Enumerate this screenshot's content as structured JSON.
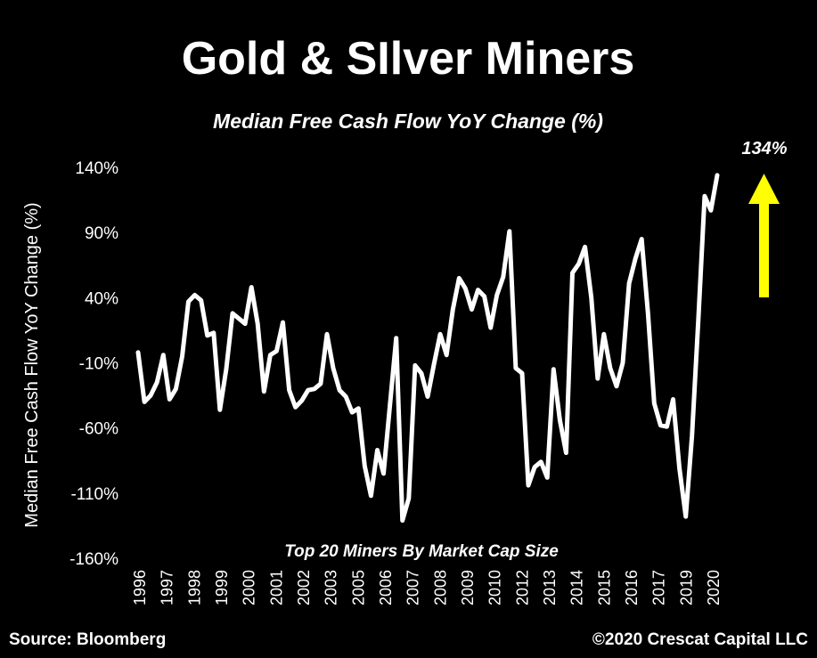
{
  "chart_data": {
    "type": "line",
    "title": "Gold & SIlver Miners",
    "subtitle": "Median Free Cash Flow YoY Change (%)",
    "ylabel": "Median Free Cash Flow YoY Change (%)",
    "xlabel": "",
    "annotation_inside": "Top 20 Miners By Market Cap Size",
    "callout_label": "134%",
    "callout_color": "#ffff00",
    "line_color": "#ffffff",
    "background": "#000000",
    "ylim": [
      -160,
      140
    ],
    "yticks": [
      140,
      90,
      40,
      -10,
      -60,
      -110,
      -160
    ],
    "ytick_labels": [
      "140%",
      "90%",
      "40%",
      "-10%",
      "-60%",
      "-110%",
      "-160%"
    ],
    "xticks": [
      "1996",
      "1997",
      "1998",
      "1999",
      "2000",
      "2001",
      "2002",
      "2003",
      "2005",
      "2006",
      "2007",
      "2008",
      "2009",
      "2010",
      "2012",
      "2013",
      "2014",
      "2015",
      "2016",
      "2017",
      "2019",
      "2020"
    ],
    "grid": false,
    "legend": "none",
    "series": [
      {
        "values": [
          -2,
          -40,
          -35,
          -25,
          -4,
          -38,
          -30,
          -5,
          37,
          42,
          38,
          11,
          13,
          -46,
          -15,
          28,
          24,
          20,
          48,
          20,
          -32,
          -4,
          -1,
          21,
          -31,
          -44,
          -39,
          -31,
          -30,
          -26,
          12,
          -14,
          -31,
          -36,
          -48,
          -45,
          -89,
          -112,
          -77,
          -95,
          -43,
          9,
          -131,
          -114,
          -12,
          -18,
          -36,
          -11,
          12,
          -4,
          31,
          55,
          47,
          31,
          46,
          41,
          17,
          42,
          56,
          91,
          -14,
          -18,
          -104,
          -90,
          -86,
          -98,
          -15,
          -54,
          -79,
          59,
          66,
          79,
          40,
          -22,
          12,
          -14,
          -28,
          -10,
          51,
          70,
          85,
          28,
          -41,
          -58,
          -59,
          -38,
          -91,
          -128,
          -66,
          23,
          118,
          107,
          134
        ]
      }
    ]
  },
  "footer": {
    "source": "Source: Bloomberg",
    "copyright": "©2020 Crescat Capital LLC"
  }
}
